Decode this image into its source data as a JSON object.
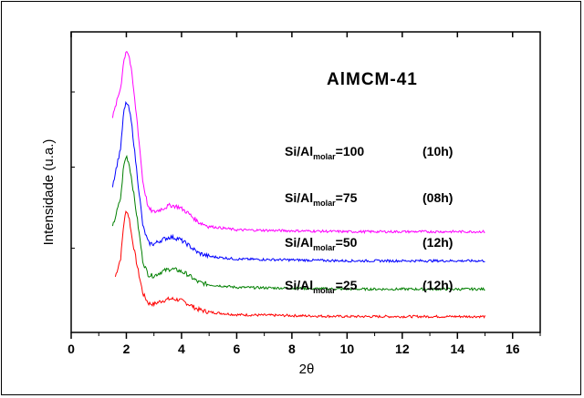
{
  "chart_data": {
    "type": "line",
    "title": "AlMCM-41",
    "xlabel": "2θ",
    "ylabel": "Intensidade (u.a.)",
    "xlim": [
      0,
      17
    ],
    "xticks": [
      "0",
      "2",
      "4",
      "6",
      "8",
      "10",
      "12",
      "14",
      "16"
    ],
    "xtick_values": [
      0,
      2,
      4,
      6,
      8,
      10,
      12,
      14,
      16
    ],
    "grid": false,
    "series": [
      {
        "name": "Si/Al molar=25 (12h)",
        "label_main": "Si/Al",
        "label_sub": "molar",
        "label_eq": "=25",
        "label_time": "(12h)",
        "color": "#ff0000",
        "x": [
          1.6,
          1.8,
          1.9,
          2.0,
          2.1,
          2.2,
          2.4,
          2.6,
          2.8,
          3.0,
          3.3,
          3.6,
          3.9,
          4.2,
          4.6,
          5.0,
          6.0,
          8.0,
          10.0,
          12.0,
          14.0,
          15.0
        ],
        "y": [
          6.3,
          8.5,
          12.2,
          13.9,
          13.0,
          10.8,
          7.4,
          4.4,
          3.3,
          3.2,
          3.6,
          3.8,
          3.7,
          3.3,
          2.6,
          2.3,
          2.0,
          1.9,
          1.8,
          1.8,
          1.8,
          1.8
        ]
      },
      {
        "name": "Si/Al molar=50 (12h)",
        "label_main": "Si/Al",
        "label_sub": "molar",
        "label_eq": "=50",
        "label_time": "(12h)",
        "color": "#007f00",
        "x": [
          1.5,
          1.8,
          1.9,
          2.0,
          2.1,
          2.2,
          2.4,
          2.6,
          2.8,
          3.0,
          3.3,
          3.6,
          3.9,
          4.2,
          4.6,
          5.0,
          6.0,
          8.0,
          10.0,
          12.0,
          14.0,
          15.0
        ],
        "y": [
          11.9,
          15.3,
          18.8,
          20.0,
          19.1,
          17.2,
          12.7,
          8.0,
          6.5,
          6.4,
          6.9,
          7.2,
          7.0,
          6.6,
          5.7,
          5.4,
          5.1,
          5.0,
          4.9,
          4.9,
          4.9,
          4.9
        ]
      },
      {
        "name": "Si/Al molar=75 (08h)",
        "label_main": "Si/Al",
        "label_sub": "molar",
        "label_eq": "=75",
        "label_time": "(08h)",
        "color": "#0000ff",
        "x": [
          1.5,
          1.8,
          1.9,
          2.0,
          2.1,
          2.2,
          2.4,
          2.6,
          2.8,
          3.0,
          3.3,
          3.6,
          3.9,
          4.2,
          4.6,
          5.0,
          6.0,
          8.0,
          10.0,
          12.0,
          14.0,
          15.0
        ],
        "y": [
          16.6,
          21.0,
          24.8,
          26.1,
          25.3,
          23.4,
          17.6,
          12.0,
          10.1,
          10.0,
          10.5,
          10.8,
          10.6,
          10.0,
          9.0,
          8.6,
          8.3,
          8.2,
          8.1,
          8.1,
          8.1,
          8.1
        ]
      },
      {
        "name": "Si/Al molar=100 (10h)",
        "label_main": "Si/Al",
        "label_sub": "molar",
        "label_eq": "=100",
        "label_time": "(10h)",
        "color": "#ff00ff",
        "x": [
          1.5,
          1.8,
          1.9,
          2.0,
          2.1,
          2.2,
          2.4,
          2.6,
          2.8,
          3.0,
          3.3,
          3.6,
          3.9,
          4.2,
          4.6,
          5.0,
          6.0,
          8.0,
          10.0,
          12.0,
          14.0,
          15.0
        ],
        "y": [
          24.3,
          27.8,
          30.6,
          32.0,
          31.3,
          29.2,
          23.6,
          17.0,
          14.0,
          13.6,
          14.0,
          14.4,
          14.2,
          13.6,
          12.5,
          12.0,
          11.6,
          11.5,
          11.4,
          11.4,
          11.4,
          11.4
        ]
      }
    ]
  }
}
